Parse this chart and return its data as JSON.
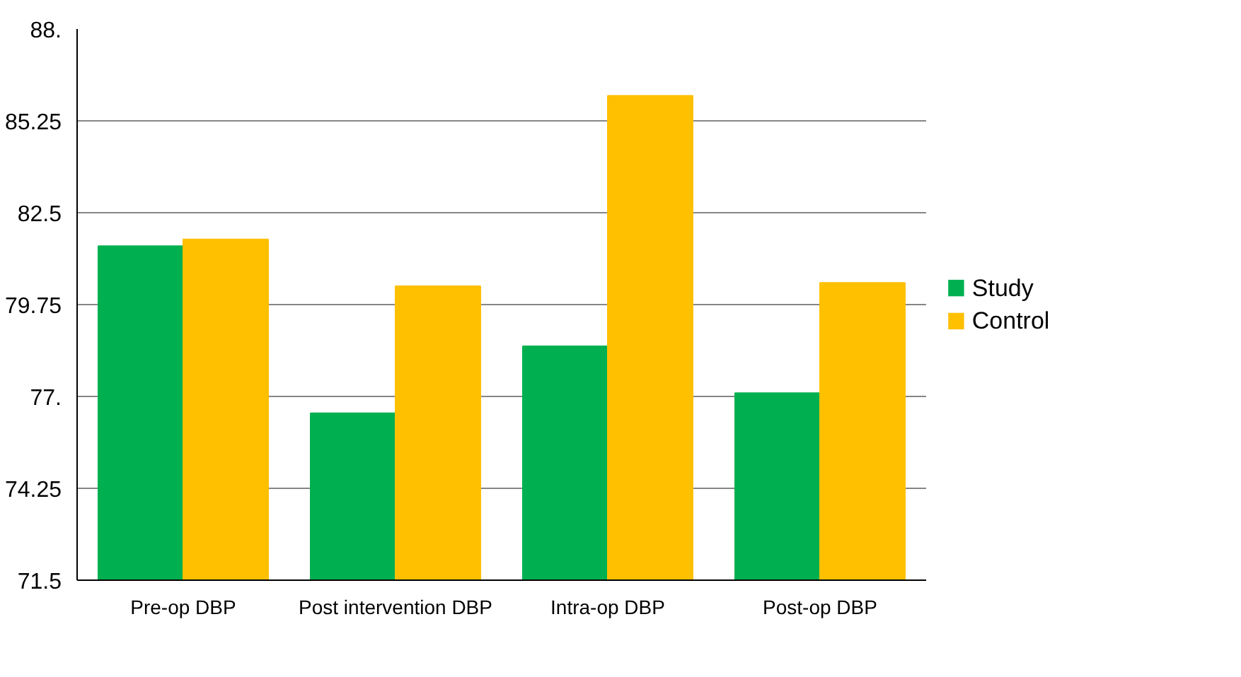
{
  "chart_data": {
    "type": "bar",
    "categories": [
      "Pre-op DBP",
      "Post intervention DBP",
      "Intra-op DBP",
      "Post-op DBP"
    ],
    "series": [
      {
        "name": "Study",
        "color": "#00b050",
        "values": [
          81.5,
          76.5,
          78.5,
          77.1
        ]
      },
      {
        "name": "Control",
        "color": "#ffc000",
        "values": [
          81.7,
          80.3,
          86.0,
          80.4
        ]
      }
    ],
    "ylim": [
      71.5,
      88
    ],
    "yticks": [
      {
        "value": 71.5,
        "label": "71.5"
      },
      {
        "value": 74.25,
        "label": "74.25"
      },
      {
        "value": 77,
        "label": "77."
      },
      {
        "value": 79.75,
        "label": "79.75"
      },
      {
        "value": 82.5,
        "label": "82.5"
      },
      {
        "value": 85.25,
        "label": "85.25"
      },
      {
        "value": 88,
        "label": "88."
      }
    ],
    "grid": "y",
    "legend": "right"
  }
}
